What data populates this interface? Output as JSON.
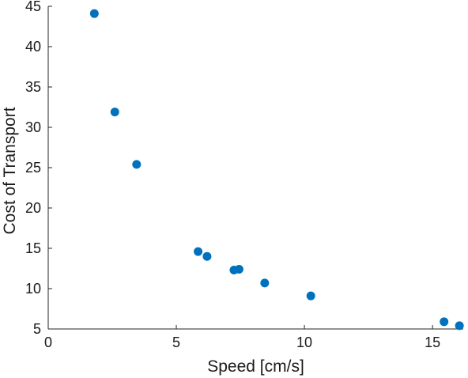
{
  "chart_data": {
    "type": "scatter",
    "title": "",
    "xlabel": "Speed [cm/s]",
    "ylabel": "Cost of Transport",
    "xlim": [
      0,
      16.2
    ],
    "ylim": [
      5,
      45
    ],
    "x_ticks": [
      "0",
      "5",
      "10",
      "15"
    ],
    "y_ticks": [
      "5",
      "10",
      "15",
      "20",
      "25",
      "30",
      "35",
      "40",
      "45"
    ],
    "grid": false,
    "legend": "none",
    "marker_color": "#0072BD",
    "series": [
      {
        "x": [
          1.8,
          2.6,
          3.45,
          5.85,
          6.2,
          7.25,
          7.45,
          8.45,
          10.25,
          15.45,
          16.05
        ],
        "y": [
          44.1,
          31.9,
          25.4,
          14.6,
          14.0,
          12.3,
          12.4,
          10.7,
          9.1,
          5.9,
          5.4
        ]
      }
    ]
  }
}
